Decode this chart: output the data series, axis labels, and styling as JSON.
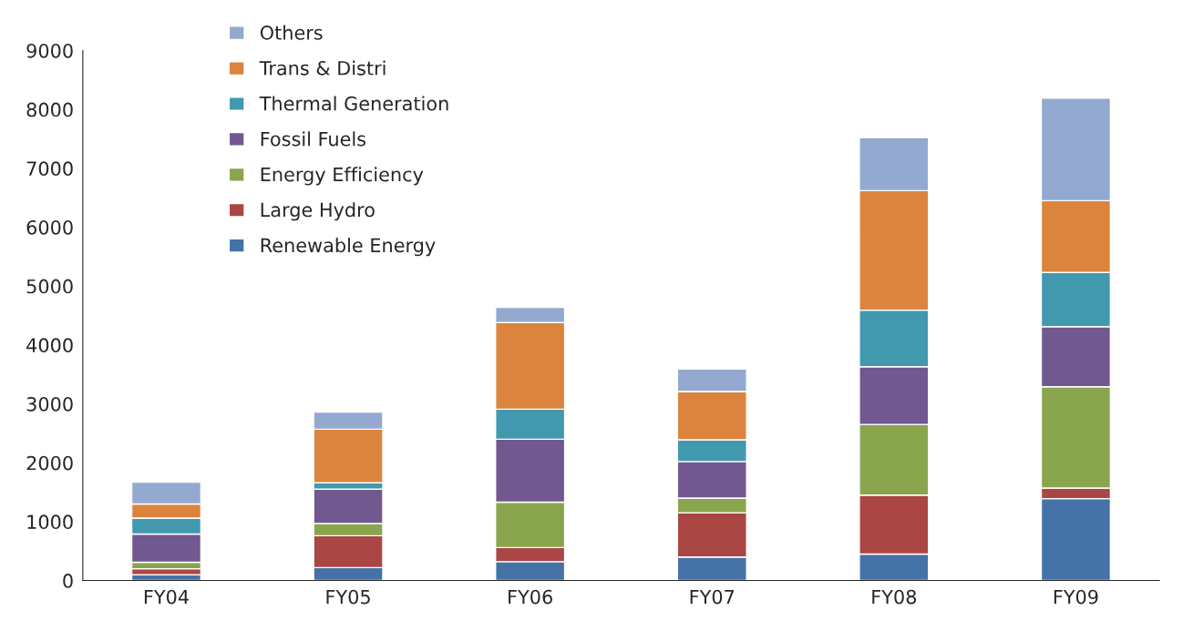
{
  "chart_data": {
    "type": "bar",
    "stacked": true,
    "categories": [
      "FY04",
      "FY05",
      "FY06",
      "FY07",
      "FY08",
      "FY09"
    ],
    "series": [
      {
        "name": "Renewable Energy",
        "color": "#4572a7",
        "values": [
          100,
          220,
          320,
          400,
          450,
          1390
        ]
      },
      {
        "name": "Large Hydro",
        "color": "#aa4643",
        "values": [
          100,
          540,
          240,
          750,
          1000,
          180
        ]
      },
      {
        "name": "Energy Efficiency",
        "color": "#89a54e",
        "values": [
          110,
          210,
          770,
          250,
          1200,
          1720
        ]
      },
      {
        "name": "Fossil Fuels",
        "color": "#71588f",
        "values": [
          480,
          580,
          1070,
          620,
          980,
          1020
        ]
      },
      {
        "name": "Thermal Generation",
        "color": "#4198af",
        "values": [
          270,
          110,
          510,
          370,
          960,
          920
        ]
      },
      {
        "name": "Trans & Distri",
        "color": "#db843d",
        "values": [
          240,
          910,
          1470,
          820,
          2030,
          1220
        ]
      },
      {
        "name": "Others",
        "color": "#93a9cf",
        "values": [
          370,
          290,
          260,
          380,
          900,
          1740
        ]
      }
    ],
    "ylim": [
      0,
      9000
    ],
    "yticks": [
      0,
      1000,
      2000,
      3000,
      4000,
      5000,
      6000,
      7000,
      8000,
      9000
    ],
    "grid": false,
    "legend": "top left"
  }
}
